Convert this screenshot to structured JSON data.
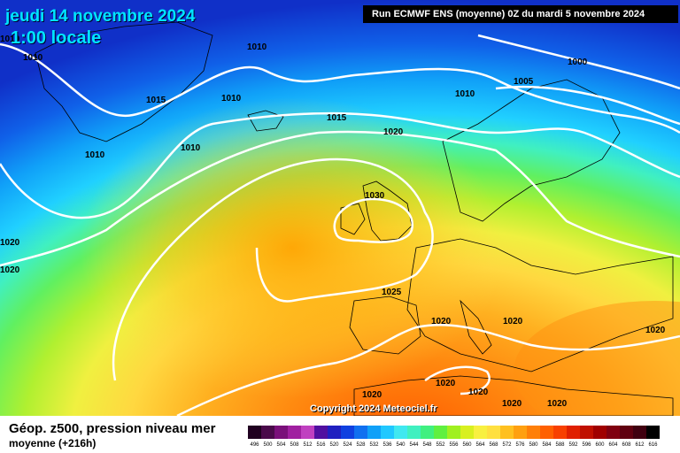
{
  "header": {
    "date": "jeudi 14 novembre 2024",
    "time": "1:00 locale",
    "run": "Run ECMWF ENS (moyenne) 0Z du mardi 5 novembre 2024"
  },
  "copyright": "Copyright 2024 Meteociel.fr",
  "footer": {
    "title": "Géop. z500, pression niveau mer",
    "subtitle": "moyenne  (+216h)"
  },
  "legend": {
    "values": [
      "496",
      "500",
      "504",
      "508",
      "512",
      "516",
      "520",
      "524",
      "528",
      "532",
      "536",
      "540",
      "544",
      "548",
      "552",
      "556",
      "560",
      "564",
      "568",
      "572",
      "576",
      "580",
      "584",
      "588",
      "592",
      "596",
      "600",
      "604",
      "608",
      "612",
      "616"
    ],
    "colors": [
      "#200020",
      "#4a0a4a",
      "#7a107a",
      "#a020a0",
      "#c040c0",
      "#5010a0",
      "#2020c0",
      "#1040e0",
      "#1070f0",
      "#10a0f8",
      "#20c8ff",
      "#40e8f0",
      "#40f0c0",
      "#40f080",
      "#60f040",
      "#a0f020",
      "#d8f020",
      "#f8f040",
      "#ffe040",
      "#ffc020",
      "#ffa010",
      "#ff8008",
      "#ff6000",
      "#f84000",
      "#e02000",
      "#c01000",
      "#a00000",
      "#800010",
      "#600010",
      "#400010",
      "#000000"
    ]
  },
  "isobar_labels": [
    "1010",
    "1010",
    "1010",
    "1015",
    "1010",
    "1010",
    "1010",
    "1015",
    "1020",
    "1010",
    "1005",
    "1000",
    "1030",
    "1025",
    "1020",
    "1020",
    "1020",
    "1020",
    "1020",
    "1020",
    "1020",
    "1020",
    "1020",
    "1020"
  ]
}
